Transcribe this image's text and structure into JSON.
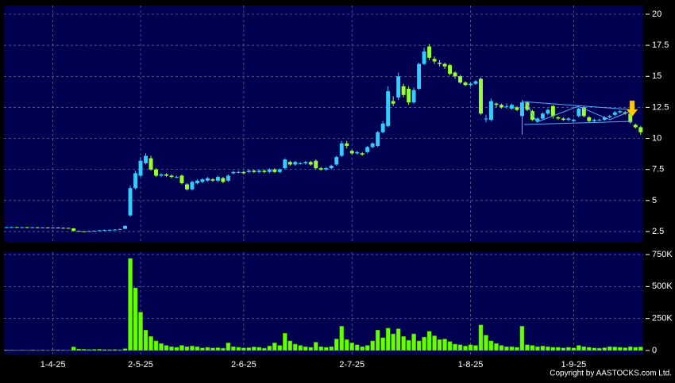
{
  "chart_data": [
    {
      "type": "candlestick",
      "up_color": "#33ccff",
      "down_color": "#99ff33",
      "grid": true,
      "ylim": [
        1.67,
        20.7
      ],
      "yticks": [
        2.5,
        5,
        7.5,
        10,
        12.5,
        15,
        17.5,
        20
      ],
      "open": [
        2.85,
        2.85,
        2.86,
        2.84,
        2.85,
        2.83,
        2.84,
        2.82,
        2.83,
        2.81,
        2.82,
        2.8,
        2.79,
        2.75,
        2.55,
        2.52,
        2.5,
        2.54,
        2.56,
        2.6,
        2.62,
        2.64,
        2.66,
        2.72,
        3.8,
        6,
        7,
        8,
        8.4,
        7.5,
        7,
        7.1,
        7,
        6.9,
        7,
        6.3,
        5.9,
        6.4,
        6.5,
        6.6,
        6.7,
        6.6,
        6.8,
        6.6,
        7.2,
        7.3,
        7.3,
        7.3,
        7.4,
        7.3,
        7.4,
        7.3,
        7.5,
        7.3,
        7.6,
        8.1,
        7.9,
        8,
        8,
        8.1,
        8.2,
        7.6,
        7.5,
        7.6,
        7.9,
        8.6,
        9.6,
        9,
        8.8,
        8.8,
        8.9,
        9.3,
        9.4,
        10.5,
        11,
        13,
        13.3,
        14.2,
        14,
        12.9,
        14,
        16,
        17.4,
        16.4,
        16.1,
        16,
        15.9,
        15.3,
        15,
        14.5,
        14.3,
        14.4,
        14.8,
        11.6,
        11.5,
        12.8,
        12.7,
        12.6,
        12.4,
        12.5,
        11.8,
        12.9,
        12.2,
        11.4,
        11.6,
        12,
        12.6,
        11.7,
        11.6,
        11.5,
        11.4,
        11.8,
        12.5,
        11.7,
        11.4,
        11.5,
        11.5,
        11.7,
        11.9,
        12.1,
        12.1,
        12,
        11.1,
        10.9
      ],
      "high": [
        2.88,
        2.89,
        2.89,
        2.88,
        2.88,
        2.87,
        2.87,
        2.86,
        2.86,
        2.85,
        2.85,
        2.83,
        2.82,
        2.78,
        2.58,
        2.55,
        2.57,
        2.59,
        2.63,
        2.65,
        2.67,
        2.69,
        2.73,
        3.0,
        6.2,
        7.4,
        8.5,
        8.8,
        8.6,
        7.6,
        7.2,
        7.2,
        7.1,
        7.0,
        7.1,
        6.4,
        6.6,
        6.7,
        6.8,
        6.9,
        6.8,
        7.0,
        6.9,
        7.1,
        7.4,
        7.4,
        7.4,
        7.5,
        7.5,
        7.5,
        7.5,
        7.6,
        7.6,
        7.6,
        8.4,
        8.2,
        8.2,
        8.1,
        8.2,
        8.2,
        8.3,
        7.7,
        7.7,
        7.9,
        8.6,
        9.8,
        9.8,
        9.1,
        9.0,
        8.9,
        9.4,
        9.7,
        10.6,
        11.4,
        14.2,
        13.4,
        15.3,
        14.4,
        14.2,
        14.1,
        16.1,
        17.3,
        17.6,
        16.6,
        16.3,
        16.1,
        16.0,
        15.4,
        15.1,
        14.6,
        14.5,
        14.7,
        14.9,
        11.9,
        13.2,
        12.9,
        12.8,
        12.8,
        12.8,
        12.6,
        13.1,
        13.0,
        12.3,
        11.7,
        12.1,
        12.4,
        12.7,
        11.8,
        11.7,
        11.7,
        11.6,
        12.5,
        12.6,
        11.8,
        11.6,
        11.6,
        11.8,
        11.9,
        12.2,
        12.3,
        12.2,
        12.1,
        11.2,
        11.0
      ],
      "low": [
        2.82,
        2.83,
        2.82,
        2.82,
        2.81,
        2.81,
        2.8,
        2.8,
        2.79,
        2.79,
        2.78,
        2.77,
        2.76,
        2.52,
        2.5,
        2.48,
        2.49,
        2.52,
        2.54,
        2.58,
        2.6,
        2.62,
        2.64,
        2.7,
        3.7,
        5.9,
        6.9,
        7.9,
        7.4,
        6.9,
        6.9,
        6.9,
        6.8,
        6.8,
        6.3,
        5.8,
        5.8,
        6.3,
        6.4,
        6.5,
        6.5,
        6.5,
        6.4,
        6.5,
        7.1,
        7.2,
        7.1,
        7.2,
        7.2,
        7.2,
        7.2,
        7.2,
        7.2,
        7.2,
        7.5,
        7.8,
        7.8,
        7.9,
        7.9,
        7.8,
        7.5,
        7.4,
        7.4,
        7.5,
        7.8,
        8.5,
        9.2,
        8.7,
        8.7,
        8.6,
        8.8,
        9.2,
        9.3,
        10.4,
        10.9,
        12.6,
        13.1,
        13.3,
        12.7,
        12.8,
        13.9,
        15.9,
        16.3,
        16.0,
        15.8,
        15.6,
        15.1,
        14.8,
        14.4,
        14.2,
        14.2,
        14.3,
        11.9,
        11.3,
        11.4,
        12.5,
        12.4,
        12.4,
        12.3,
        12.2,
        10.3,
        12.2,
        11.4,
        11.3,
        11.5,
        11.9,
        11.6,
        11.5,
        11.4,
        11.4,
        11.3,
        11.7,
        11.7,
        11.3,
        11.3,
        11.4,
        11.4,
        11.6,
        11.8,
        12.0,
        11.9,
        11.2,
        10.8,
        10.3
      ],
      "close": [
        2.85,
        2.86,
        2.84,
        2.85,
        2.83,
        2.84,
        2.82,
        2.83,
        2.81,
        2.82,
        2.8,
        2.79,
        2.78,
        2.55,
        2.52,
        2.5,
        2.54,
        2.56,
        2.6,
        2.62,
        2.64,
        2.66,
        2.7,
        2.95,
        6,
        7.2,
        8.2,
        8.6,
        7.5,
        7,
        7.1,
        7,
        6.9,
        6.9,
        6.4,
        5.9,
        6.5,
        6.6,
        6.7,
        6.8,
        6.6,
        6.9,
        6.5,
        7,
        7.3,
        7.3,
        7.2,
        7.4,
        7.3,
        7.4,
        7.3,
        7.5,
        7.3,
        7.5,
        8.3,
        7.9,
        8.1,
        8,
        8.1,
        7.9,
        7.6,
        7.5,
        7.6,
        7.8,
        8.5,
        9.6,
        9.4,
        8.8,
        8.9,
        8.7,
        9.3,
        9.6,
        10.5,
        11.2,
        13.8,
        12.8,
        15,
        13.5,
        12.9,
        13.9,
        16,
        17,
        16.5,
        16.2,
        16,
        15.8,
        15.2,
        15,
        14.5,
        14.3,
        14.4,
        14.6,
        12,
        11.6,
        13,
        12.7,
        12.5,
        12.6,
        12.7,
        12.3,
        12.9,
        12.3,
        11.5,
        11.6,
        12,
        12.3,
        11.8,
        11.6,
        11.5,
        11.6,
        11.5,
        12.4,
        11.8,
        11.4,
        11.5,
        11.5,
        11.7,
        11.8,
        12.1,
        12.2,
        12,
        11.3,
        10.9,
        10.5
      ]
    },
    {
      "type": "bar",
      "color": "#66ff00",
      "grid": true,
      "ylim": [
        -31000,
        768600
      ],
      "yticks": [
        0,
        {
          "value": 250000,
          "label": "250K"
        },
        {
          "value": 500000,
          "label": "500K"
        },
        {
          "value": 750000,
          "label": "750K"
        }
      ],
      "categories": [
        null,
        null,
        null,
        null,
        null,
        null,
        null,
        null,
        null,
        "1-4-25",
        null,
        null,
        null,
        null,
        null,
        null,
        null,
        null,
        null,
        null,
        null,
        null,
        null,
        null,
        null,
        null,
        "2-5-25",
        null,
        null,
        null,
        null,
        null,
        null,
        null,
        null,
        null,
        null,
        null,
        null,
        null,
        null,
        null,
        null,
        null,
        null,
        null,
        "2-6-25",
        null,
        null,
        null,
        null,
        null,
        null,
        null,
        null,
        null,
        null,
        null,
        null,
        null,
        null,
        null,
        null,
        null,
        null,
        null,
        null,
        "2-7-25",
        null,
        null,
        null,
        null,
        null,
        null,
        null,
        null,
        null,
        null,
        null,
        null,
        null,
        null,
        null,
        null,
        null,
        null,
        null,
        null,
        null,
        null,
        "1-8-25",
        null,
        null,
        null,
        null,
        null,
        null,
        null,
        null,
        null,
        null,
        null,
        null,
        null,
        null,
        null,
        null,
        null,
        null,
        null,
        "1-9-25",
        null,
        null,
        null,
        null,
        null,
        null,
        null,
        null,
        null,
        null,
        null,
        null,
        null
      ],
      "values": [
        5000,
        4000,
        3000,
        4000,
        3000,
        5000,
        3000,
        4000,
        3000,
        4000,
        5000,
        4000,
        3000,
        28000,
        12000,
        10000,
        8000,
        9000,
        10000,
        8000,
        7000,
        8000,
        6000,
        15000,
        720000,
        490000,
        300000,
        160000,
        110000,
        75000,
        55000,
        40000,
        30000,
        25000,
        40000,
        30000,
        35000,
        30000,
        20000,
        25000,
        20000,
        22000,
        18000,
        60000,
        30000,
        25000,
        20000,
        22000,
        28000,
        25000,
        18000,
        35000,
        60000,
        40000,
        135000,
        75000,
        50000,
        40000,
        30000,
        25000,
        65000,
        30000,
        25000,
        30000,
        90000,
        190000,
        85000,
        60000,
        45000,
        30000,
        40000,
        75000,
        160000,
        100000,
        175000,
        130000,
        170000,
        110000,
        80000,
        130000,
        75000,
        105000,
        150000,
        115000,
        85000,
        90000,
        70000,
        50000,
        45000,
        35000,
        45000,
        40000,
        200000,
        120000,
        75000,
        55000,
        40000,
        30000,
        30000,
        25000,
        190000,
        45000,
        40000,
        30000,
        35000,
        30000,
        25000,
        25000,
        20000,
        25000,
        20000,
        40000,
        30000,
        25000,
        20000,
        18000,
        22000,
        30000,
        28000,
        25000,
        22000,
        30000,
        25000,
        28000
      ]
    }
  ],
  "footer": {
    "copyright": "Copyright by AASTOCKS.com Ltd."
  }
}
